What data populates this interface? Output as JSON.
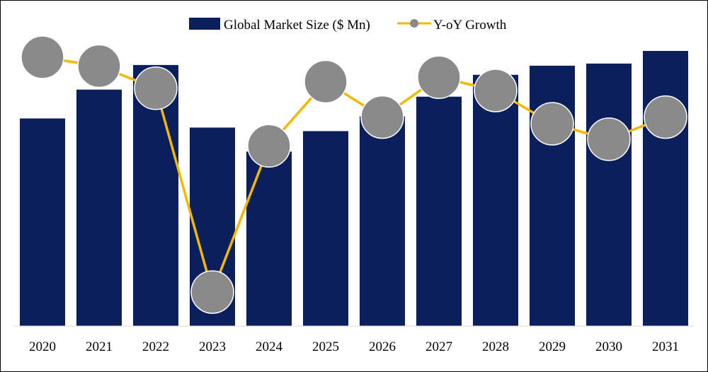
{
  "chart_data": {
    "type": "bar",
    "categories": [
      "2020",
      "2021",
      "2022",
      "2023",
      "2024",
      "2025",
      "2026",
      "2027",
      "2028",
      "2029",
      "2030",
      "2031"
    ],
    "series": [
      {
        "name": "Global Market Size ($ Mn)",
        "type": "bar",
        "color": "#0a1f5c",
        "values": [
          295,
          336,
          371,
          282,
          248,
          277,
          298,
          326,
          357,
          370,
          373,
          391
        ]
      },
      {
        "name": "Y-oY Growth",
        "type": "line",
        "color": "#f5b800",
        "marker_color": "#8a8a8a",
        "values": [
          8.2,
          7.8,
          6.8,
          -2.4,
          4.2,
          7.1,
          5.5,
          7.3,
          6.7,
          5.2,
          4.5,
          5.5
        ]
      }
    ],
    "legend": {
      "position": "top-center"
    },
    "grid": false
  }
}
